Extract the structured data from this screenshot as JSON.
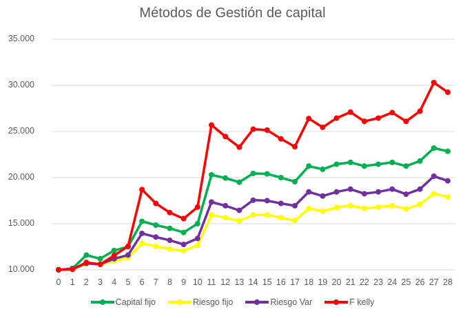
{
  "chart_data": {
    "type": "line",
    "title": "Métodos de Gestión de capital",
    "xlabel": "",
    "ylabel": "",
    "ylim": [
      10000,
      35000
    ],
    "yticks": [
      "10.000",
      "15.000",
      "20.000",
      "25.000",
      "30.000",
      "35.000"
    ],
    "ytick_values": [
      10000,
      15000,
      20000,
      25000,
      30000,
      35000
    ],
    "grid": true,
    "legend_position": "bottom",
    "x": [
      0,
      1,
      2,
      3,
      4,
      5,
      6,
      7,
      8,
      9,
      10,
      11,
      12,
      13,
      14,
      15,
      16,
      17,
      18,
      19,
      20,
      21,
      22,
      23,
      24,
      25,
      26,
      27,
      28
    ],
    "series": [
      {
        "name": "Capital fijo",
        "color": "#00b050",
        "values": [
          10000,
          10150,
          11600,
          11200,
          12100,
          12500,
          15250,
          14850,
          14500,
          14050,
          15000,
          20300,
          19950,
          19500,
          20450,
          20400,
          20000,
          19550,
          21250,
          20900,
          21450,
          21650,
          21250,
          21450,
          21650,
          21250,
          21800,
          23200,
          22850
        ]
      },
      {
        "name": "Riesgo fijo",
        "color": "#ffff00",
        "values": [
          10000,
          10050,
          10650,
          10550,
          10950,
          11300,
          12850,
          12550,
          12250,
          12050,
          12650,
          15950,
          15650,
          15300,
          15950,
          15950,
          15650,
          15350,
          16650,
          16350,
          16750,
          16950,
          16650,
          16800,
          16950,
          16600,
          17100,
          18250,
          17900
        ]
      },
      {
        "name": "Riesgo Var",
        "color": "#7030a0",
        "values": [
          10000,
          10100,
          10700,
          10600,
          11200,
          11600,
          13950,
          13550,
          13200,
          12750,
          13400,
          17350,
          16950,
          16450,
          17550,
          17500,
          17200,
          16950,
          18450,
          18000,
          18450,
          18750,
          18250,
          18450,
          18750,
          18200,
          18750,
          20150,
          19650
        ]
      },
      {
        "name": "F kelly",
        "color": "#ff0000",
        "values": [
          10000,
          10050,
          10800,
          10600,
          11550,
          12550,
          18700,
          17200,
          16200,
          15550,
          16800,
          25700,
          24450,
          23300,
          25250,
          25150,
          24200,
          23350,
          26400,
          25450,
          26450,
          27100,
          26100,
          26450,
          27050,
          26100,
          27200,
          30300,
          29250
        ]
      }
    ]
  }
}
